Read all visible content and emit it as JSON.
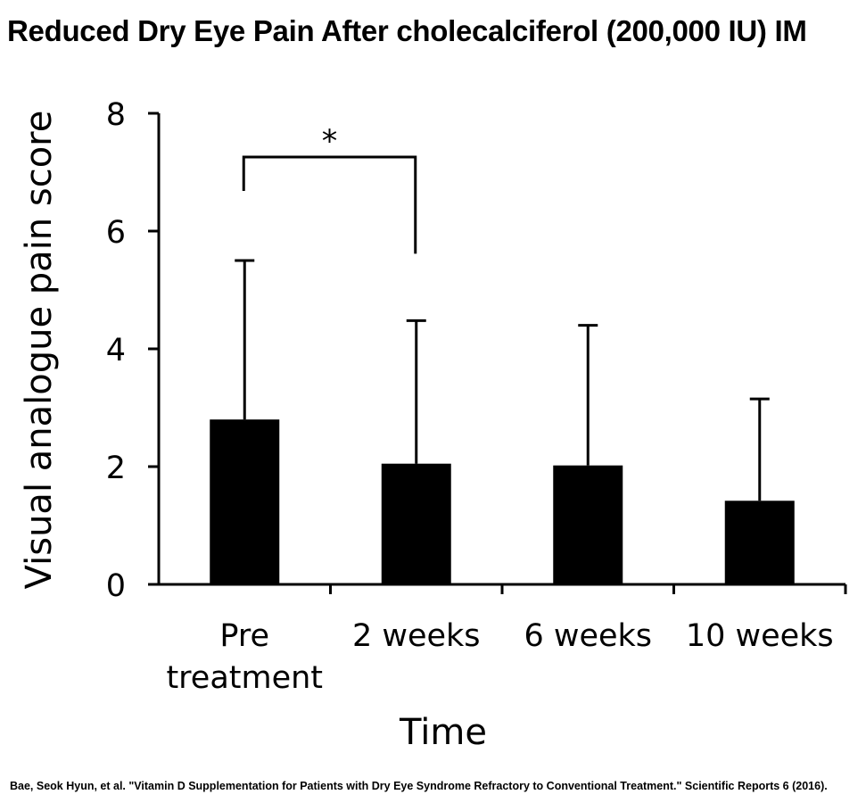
{
  "title": "Reduced Dry Eye Pain After cholecalciferol (200,000 IU) IM",
  "citation": "Bae, Seok Hyun, et al. \"Vitamin D Supplementation for Patients with Dry Eye Syndrome Refractory to Conventional Treatment.\" Scientific Reports 6 (2016).",
  "chart_data": {
    "type": "bar",
    "title": "Reduced Dry Eye Pain After cholecalciferol (200,000 IU) IM",
    "xlabel": "Time",
    "ylabel": "Visual analogue pain score",
    "categories": [
      [
        "Pre",
        "treatment"
      ],
      [
        "2 weeks"
      ],
      [
        "6 weeks"
      ],
      [
        "10 weeks"
      ]
    ],
    "values": [
      2.8,
      2.05,
      2.02,
      1.42
    ],
    "error_upper": [
      5.5,
      4.48,
      4.4,
      3.15
    ],
    "ylim": [
      0,
      8
    ],
    "yticks": [
      0,
      2,
      4,
      6,
      8
    ],
    "grid": false,
    "bar_color": "#000000",
    "annotations": [
      {
        "type": "significance-bracket",
        "from": 0,
        "to": 1,
        "label": "*"
      }
    ]
  }
}
